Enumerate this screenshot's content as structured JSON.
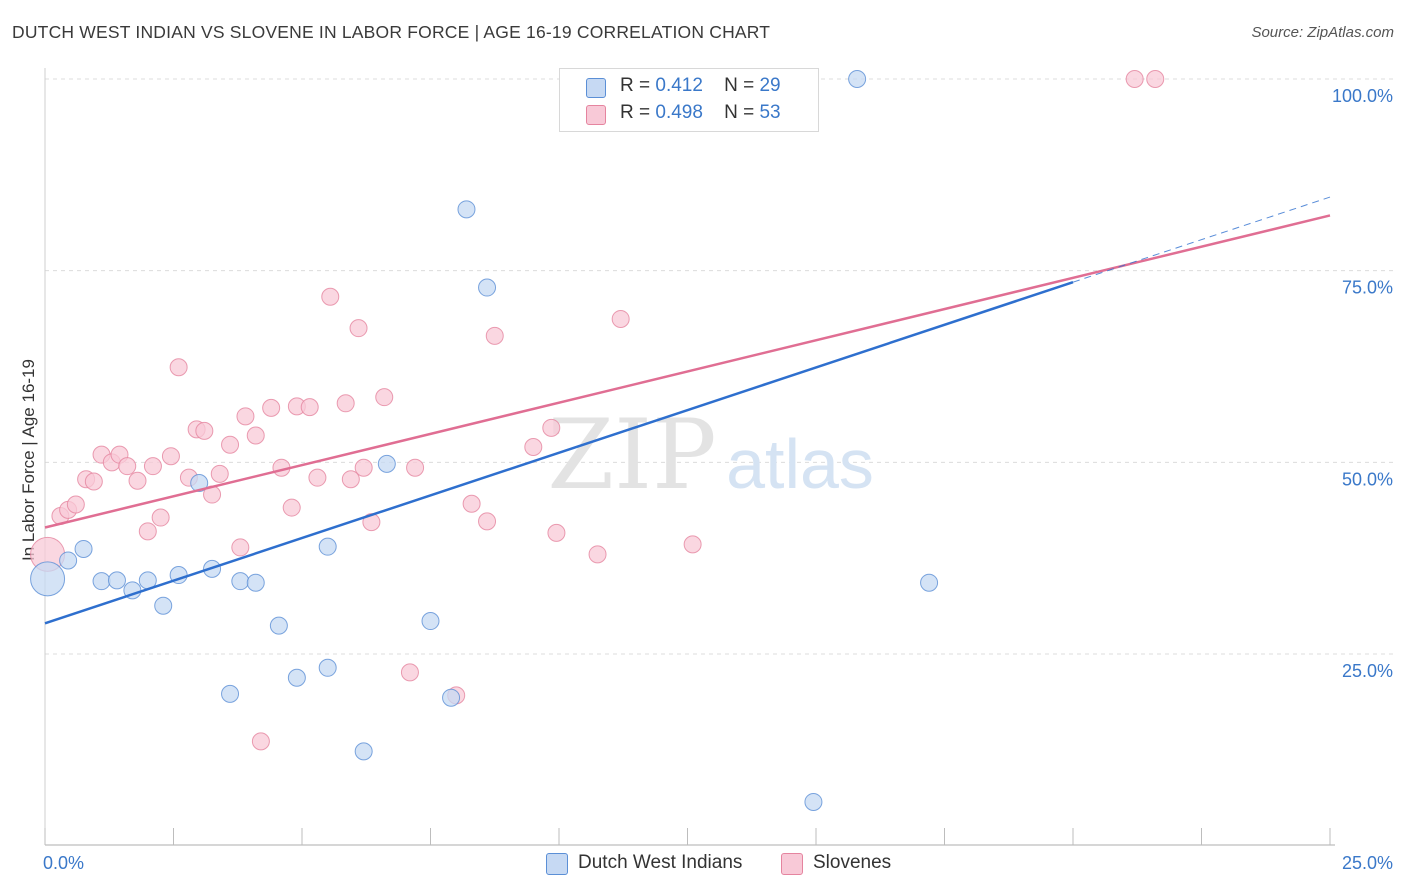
{
  "header": {
    "title": "DUTCH WEST INDIAN VS SLOVENE IN LABOR FORCE | AGE 16-19 CORRELATION CHART",
    "source": "Source: ZipAtlas.com"
  },
  "legend": {
    "r_label": "R =",
    "n_label": "N =",
    "rows": [
      {
        "r": "0.412",
        "n": "29"
      },
      {
        "r": "0.498",
        "n": "53"
      }
    ]
  },
  "watermark": {
    "zip": "ZIP",
    "atlas": "atlas"
  },
  "colors": {
    "blue_fill": "#c6d9f3",
    "blue_stroke": "#5b8fd6",
    "blue_line": "#2e6fce",
    "pink_fill": "#f8c9d7",
    "pink_stroke": "#e5849f",
    "pink_line": "#e06e93",
    "axis_text": "#3a78c9",
    "grid": "#dcdcdc"
  },
  "chart_data": {
    "type": "scatter",
    "title": "DUTCH WEST INDIAN VS SLOVENE IN LABOR FORCE | AGE 16-19 CORRELATION CHART",
    "xlabel": "",
    "ylabel": "In Labor Force | Age 16-19",
    "xlim": [
      0,
      25
    ],
    "ylim": [
      0,
      102
    ],
    "x_tick_labels": [
      "0.0%",
      "25.0%"
    ],
    "y_ticks": [
      25,
      50,
      75,
      100
    ],
    "y_tick_labels": [
      "25.0%",
      "50.0%",
      "75.0%",
      "100.0%"
    ],
    "grid": true,
    "legend_position": "bottom",
    "series": [
      {
        "name": "Dutch West Indians",
        "r": 0.412,
        "n": 29,
        "trend": {
          "x": [
            0,
            20
          ],
          "y": [
            29.0,
            73.5
          ]
        },
        "trend_extension": {
          "x": [
            20,
            25
          ],
          "y": [
            73.5,
            84.6
          ]
        },
        "points": [
          {
            "x": 0.05,
            "y": 34.8,
            "big": true
          },
          {
            "x": 0.45,
            "y": 37.2
          },
          {
            "x": 0.75,
            "y": 38.7
          },
          {
            "x": 1.1,
            "y": 34.5
          },
          {
            "x": 1.4,
            "y": 34.6
          },
          {
            "x": 1.7,
            "y": 33.3
          },
          {
            "x": 2.0,
            "y": 34.6
          },
          {
            "x": 2.3,
            "y": 31.3
          },
          {
            "x": 2.6,
            "y": 35.3
          },
          {
            "x": 3.0,
            "y": 47.3
          },
          {
            "x": 3.25,
            "y": 36.1
          },
          {
            "x": 3.6,
            "y": 19.8
          },
          {
            "x": 3.8,
            "y": 34.5
          },
          {
            "x": 4.1,
            "y": 34.3
          },
          {
            "x": 4.55,
            "y": 28.7
          },
          {
            "x": 4.9,
            "y": 21.9
          },
          {
            "x": 5.5,
            "y": 23.2
          },
          {
            "x": 5.5,
            "y": 39.0
          },
          {
            "x": 6.2,
            "y": 12.3
          },
          {
            "x": 6.65,
            "y": 49.8
          },
          {
            "x": 7.5,
            "y": 29.3
          },
          {
            "x": 7.9,
            "y": 19.3
          },
          {
            "x": 8.2,
            "y": 83.0
          },
          {
            "x": 8.6,
            "y": 72.8
          },
          {
            "x": 10.2,
            "y": 100.0
          },
          {
            "x": 12.95,
            "y": 100.0
          },
          {
            "x": 14.95,
            "y": 5.7
          },
          {
            "x": 15.8,
            "y": 100.0
          },
          {
            "x": 17.2,
            "y": 34.3
          }
        ]
      },
      {
        "name": "Slovenes",
        "r": 0.498,
        "n": 53,
        "trend": {
          "x": [
            0,
            25
          ],
          "y": [
            41.5,
            82.2
          ]
        },
        "points": [
          {
            "x": 0.05,
            "y": 38.0,
            "big": true
          },
          {
            "x": 0.3,
            "y": 43.0
          },
          {
            "x": 0.45,
            "y": 43.8
          },
          {
            "x": 0.6,
            "y": 44.5
          },
          {
            "x": 0.8,
            "y": 47.8
          },
          {
            "x": 0.95,
            "y": 47.5
          },
          {
            "x": 1.1,
            "y": 51.0
          },
          {
            "x": 1.3,
            "y": 50.0
          },
          {
            "x": 1.45,
            "y": 51.0
          },
          {
            "x": 1.6,
            "y": 49.5
          },
          {
            "x": 1.8,
            "y": 47.6
          },
          {
            "x": 2.0,
            "y": 41.0
          },
          {
            "x": 2.1,
            "y": 49.5
          },
          {
            "x": 2.25,
            "y": 42.8
          },
          {
            "x": 2.45,
            "y": 50.8
          },
          {
            "x": 2.6,
            "y": 62.4
          },
          {
            "x": 2.8,
            "y": 48.0
          },
          {
            "x": 2.95,
            "y": 54.3
          },
          {
            "x": 3.1,
            "y": 54.1
          },
          {
            "x": 3.25,
            "y": 45.8
          },
          {
            "x": 3.4,
            "y": 48.5
          },
          {
            "x": 3.6,
            "y": 52.3
          },
          {
            "x": 3.8,
            "y": 38.9
          },
          {
            "x": 3.9,
            "y": 56.0
          },
          {
            "x": 4.1,
            "y": 53.5
          },
          {
            "x": 4.2,
            "y": 13.6
          },
          {
            "x": 4.4,
            "y": 57.1
          },
          {
            "x": 4.6,
            "y": 49.3
          },
          {
            "x": 4.8,
            "y": 44.1
          },
          {
            "x": 4.9,
            "y": 57.3
          },
          {
            "x": 5.15,
            "y": 57.2
          },
          {
            "x": 5.3,
            "y": 48.0
          },
          {
            "x": 5.55,
            "y": 71.6
          },
          {
            "x": 5.85,
            "y": 57.7
          },
          {
            "x": 5.95,
            "y": 47.8
          },
          {
            "x": 6.1,
            "y": 67.5
          },
          {
            "x": 6.2,
            "y": 49.3
          },
          {
            "x": 6.35,
            "y": 42.2
          },
          {
            "x": 6.6,
            "y": 58.5
          },
          {
            "x": 7.1,
            "y": 22.6
          },
          {
            "x": 7.2,
            "y": 49.3
          },
          {
            "x": 8.0,
            "y": 19.6
          },
          {
            "x": 8.3,
            "y": 44.6
          },
          {
            "x": 8.6,
            "y": 42.3
          },
          {
            "x": 8.75,
            "y": 66.5
          },
          {
            "x": 9.5,
            "y": 52.0
          },
          {
            "x": 9.85,
            "y": 54.5
          },
          {
            "x": 9.95,
            "y": 40.8
          },
          {
            "x": 10.75,
            "y": 38.0
          },
          {
            "x": 11.2,
            "y": 68.7
          },
          {
            "x": 12.6,
            "y": 39.3
          },
          {
            "x": 21.2,
            "y": 100.0
          },
          {
            "x": 21.6,
            "y": 100.0
          }
        ]
      }
    ]
  }
}
